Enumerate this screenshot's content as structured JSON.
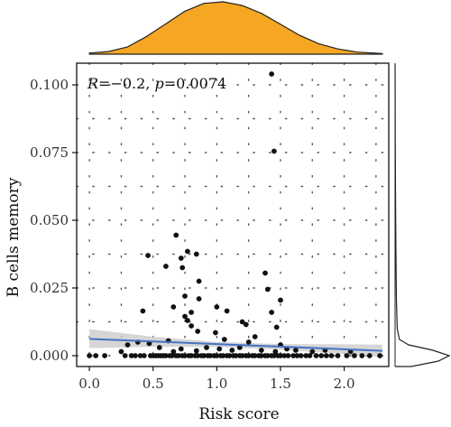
{
  "chart_data": {
    "type": "scatter",
    "xlabel": "Risk score",
    "ylabel": "B cells memory",
    "xlim": [
      -0.1,
      2.35
    ],
    "ylim": [
      -0.004,
      0.108
    ],
    "x_ticks": [
      "0.0",
      "0.5",
      "1.0",
      "1.5",
      "2.0"
    ],
    "x_tick_values": [
      0.0,
      0.5,
      1.0,
      1.5,
      2.0
    ],
    "y_ticks": [
      "0.000",
      "0.025",
      "0.050",
      "0.075",
      "0.100"
    ],
    "y_tick_values": [
      0.0,
      0.025,
      0.05,
      0.075,
      0.1
    ],
    "annotation": {
      "r_label": "R",
      "r_value": "=−0.2, ",
      "p_label": "p",
      "p_value": "=0.0074"
    },
    "grid": true,
    "points": [
      {
        "x": 1.43,
        "y": 0.104
      },
      {
        "x": 1.45,
        "y": 0.0755
      },
      {
        "x": 0.68,
        "y": 0.0445
      },
      {
        "x": 0.77,
        "y": 0.0385
      },
      {
        "x": 0.84,
        "y": 0.0375
      },
      {
        "x": 0.46,
        "y": 0.037
      },
      {
        "x": 0.72,
        "y": 0.036
      },
      {
        "x": 0.6,
        "y": 0.033
      },
      {
        "x": 0.73,
        "y": 0.0325
      },
      {
        "x": 1.38,
        "y": 0.0305
      },
      {
        "x": 0.86,
        "y": 0.0275
      },
      {
        "x": 1.4,
        "y": 0.0245
      },
      {
        "x": 0.75,
        "y": 0.022
      },
      {
        "x": 0.86,
        "y": 0.021
      },
      {
        "x": 1.5,
        "y": 0.0205
      },
      {
        "x": 0.66,
        "y": 0.018
      },
      {
        "x": 1.0,
        "y": 0.018
      },
      {
        "x": 0.42,
        "y": 0.0165
      },
      {
        "x": 0.8,
        "y": 0.016
      },
      {
        "x": 1.08,
        "y": 0.0165
      },
      {
        "x": 1.43,
        "y": 0.016
      },
      {
        "x": 0.75,
        "y": 0.0145
      },
      {
        "x": 0.77,
        "y": 0.013
      },
      {
        "x": 1.2,
        "y": 0.0125
      },
      {
        "x": 0.8,
        "y": 0.011
      },
      {
        "x": 1.23,
        "y": 0.0115
      },
      {
        "x": 0.85,
        "y": 0.009
      },
      {
        "x": 1.47,
        "y": 0.0105
      },
      {
        "x": 0.99,
        "y": 0.0085
      },
      {
        "x": 1.3,
        "y": 0.007
      },
      {
        "x": 0.62,
        "y": 0.0055
      },
      {
        "x": 1.06,
        "y": 0.006
      },
      {
        "x": 1.25,
        "y": 0.005
      },
      {
        "x": 1.5,
        "y": 0.004
      },
      {
        "x": 0.3,
        "y": 0.004
      },
      {
        "x": 0.38,
        "y": 0.005
      },
      {
        "x": 0.47,
        "y": 0.0045
      },
      {
        "x": 0.55,
        "y": 0.003
      },
      {
        "x": 0.72,
        "y": 0.0025
      },
      {
        "x": 0.92,
        "y": 0.003
      },
      {
        "x": 1.02,
        "y": 0.0025
      },
      {
        "x": 1.12,
        "y": 0.002
      },
      {
        "x": 1.18,
        "y": 0.003
      },
      {
        "x": 1.35,
        "y": 0.002
      },
      {
        "x": 1.55,
        "y": 0.0025
      },
      {
        "x": 1.62,
        "y": 0.002
      },
      {
        "x": 1.75,
        "y": 0.0015
      },
      {
        "x": 1.85,
        "y": 0.002
      },
      {
        "x": 2.05,
        "y": 0.0015
      },
      {
        "x": 0.25,
        "y": 0.0015
      },
      {
        "x": 0.66,
        "y": 0.0015
      },
      {
        "x": 0.84,
        "y": 0.0018
      },
      {
        "x": 1.46,
        "y": 0.0015
      },
      {
        "x": 0.0,
        "y": 0.0
      },
      {
        "x": 0.05,
        "y": 0.0
      },
      {
        "x": 0.12,
        "y": 0.0
      },
      {
        "x": 0.28,
        "y": 0.0
      },
      {
        "x": 0.33,
        "y": 0.0
      },
      {
        "x": 0.36,
        "y": 0.0
      },
      {
        "x": 0.4,
        "y": 0.0
      },
      {
        "x": 0.43,
        "y": 0.0
      },
      {
        "x": 0.48,
        "y": 0.0
      },
      {
        "x": 0.5,
        "y": 0.0
      },
      {
        "x": 0.52,
        "y": 0.0
      },
      {
        "x": 0.54,
        "y": 0.0
      },
      {
        "x": 0.56,
        "y": 0.0
      },
      {
        "x": 0.58,
        "y": 0.0
      },
      {
        "x": 0.6,
        "y": 0.0
      },
      {
        "x": 0.63,
        "y": 0.0
      },
      {
        "x": 0.65,
        "y": 0.0
      },
      {
        "x": 0.68,
        "y": 0.0
      },
      {
        "x": 0.7,
        "y": 0.0
      },
      {
        "x": 0.73,
        "y": 0.0
      },
      {
        "x": 0.75,
        "y": 0.0
      },
      {
        "x": 0.78,
        "y": 0.0
      },
      {
        "x": 0.8,
        "y": 0.0
      },
      {
        "x": 0.83,
        "y": 0.0
      },
      {
        "x": 0.85,
        "y": 0.0
      },
      {
        "x": 0.88,
        "y": 0.0
      },
      {
        "x": 0.9,
        "y": 0.0
      },
      {
        "x": 0.93,
        "y": 0.0
      },
      {
        "x": 0.95,
        "y": 0.0
      },
      {
        "x": 0.98,
        "y": 0.0
      },
      {
        "x": 1.0,
        "y": 0.0
      },
      {
        "x": 1.03,
        "y": 0.0
      },
      {
        "x": 1.05,
        "y": 0.0
      },
      {
        "x": 1.08,
        "y": 0.0
      },
      {
        "x": 1.1,
        "y": 0.0
      },
      {
        "x": 1.13,
        "y": 0.0
      },
      {
        "x": 1.15,
        "y": 0.0
      },
      {
        "x": 1.18,
        "y": 0.0
      },
      {
        "x": 1.2,
        "y": 0.0
      },
      {
        "x": 1.23,
        "y": 0.0
      },
      {
        "x": 1.25,
        "y": 0.0
      },
      {
        "x": 1.28,
        "y": 0.0
      },
      {
        "x": 1.3,
        "y": 0.0
      },
      {
        "x": 1.33,
        "y": 0.0
      },
      {
        "x": 1.35,
        "y": 0.0
      },
      {
        "x": 1.38,
        "y": 0.0
      },
      {
        "x": 1.4,
        "y": 0.0
      },
      {
        "x": 1.43,
        "y": 0.0
      },
      {
        "x": 1.45,
        "y": 0.0
      },
      {
        "x": 1.48,
        "y": 0.0
      },
      {
        "x": 1.5,
        "y": 0.0
      },
      {
        "x": 1.53,
        "y": 0.0
      },
      {
        "x": 1.56,
        "y": 0.0
      },
      {
        "x": 1.6,
        "y": 0.0
      },
      {
        "x": 1.63,
        "y": 0.0
      },
      {
        "x": 1.66,
        "y": 0.0
      },
      {
        "x": 1.7,
        "y": 0.0
      },
      {
        "x": 1.73,
        "y": 0.0
      },
      {
        "x": 1.78,
        "y": 0.0
      },
      {
        "x": 1.82,
        "y": 0.0
      },
      {
        "x": 1.86,
        "y": 0.0
      },
      {
        "x": 1.9,
        "y": 0.0
      },
      {
        "x": 1.95,
        "y": 0.0
      },
      {
        "x": 2.02,
        "y": 0.0
      },
      {
        "x": 2.08,
        "y": 0.0
      },
      {
        "x": 2.14,
        "y": 0.0
      },
      {
        "x": 2.2,
        "y": 0.0
      },
      {
        "x": 2.28,
        "y": 0.0
      }
    ],
    "regression": {
      "x": [
        0.0,
        0.5,
        1.0,
        1.5,
        2.0,
        2.3
      ],
      "y": [
        0.0062,
        0.0051,
        0.0041,
        0.0032,
        0.0023,
        0.0018
      ],
      "ci_lower": [
        0.0028,
        0.0033,
        0.0032,
        0.0022,
        0.0006,
        -0.0005
      ],
      "ci_upper": [
        0.0098,
        0.007,
        0.0051,
        0.0043,
        0.0042,
        0.0041
      ]
    },
    "x_density": {
      "x": [
        0.0,
        0.15,
        0.3,
        0.45,
        0.6,
        0.75,
        0.9,
        1.05,
        1.2,
        1.35,
        1.5,
        1.65,
        1.8,
        1.95,
        2.1,
        2.3
      ],
      "density": [
        0.02,
        0.05,
        0.14,
        0.34,
        0.58,
        0.82,
        0.97,
        1.0,
        0.93,
        0.78,
        0.57,
        0.36,
        0.2,
        0.1,
        0.04,
        0.01
      ]
    },
    "y_density": {
      "y": [
        -0.004,
        -0.002,
        0.0,
        0.002,
        0.004,
        0.006,
        0.01,
        0.02,
        0.04,
        0.06,
        0.08,
        0.1,
        0.108
      ],
      "density": [
        0.3,
        0.8,
        1.0,
        0.7,
        0.25,
        0.08,
        0.04,
        0.025,
        0.015,
        0.008,
        0.004,
        0.002,
        0.0
      ]
    },
    "colors": {
      "density_fill": "#F5A623",
      "point": "#111111",
      "regression_line": "#4472C4",
      "ci_band": "#CFCFCF",
      "grid": "#555555"
    }
  }
}
